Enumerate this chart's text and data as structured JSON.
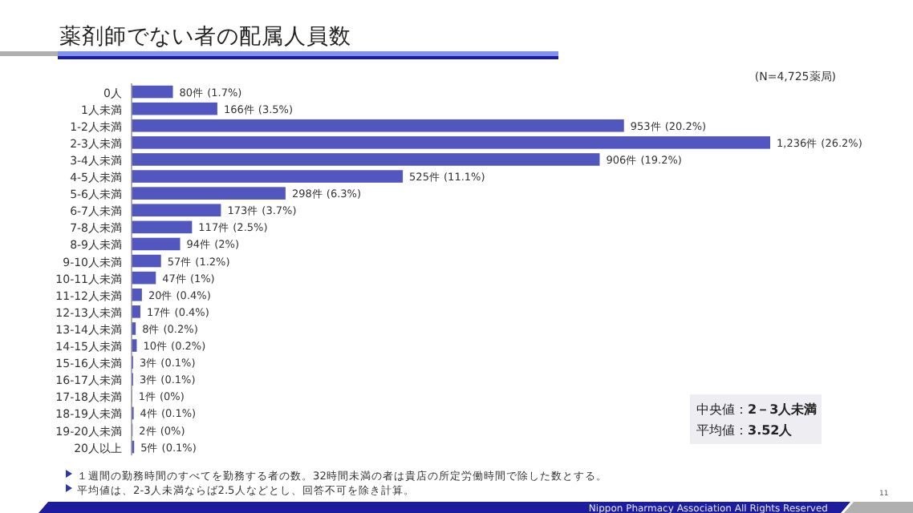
{
  "chart_data": {
    "type": "bar",
    "orientation": "horizontal",
    "title": "薬剤師でない者の配属人員数",
    "color": "#5257c0",
    "categories": [
      "0人",
      "1人未満",
      "1-2人未満",
      "2-3人未満",
      "3-4人未満",
      "4-5人未満",
      "5-6人未満",
      "6-7人未満",
      "7-8人未満",
      "8-9人未満",
      "9-10人未満",
      "10-11人未満",
      "11-12人未満",
      "12-13人未満",
      "13-14人未満",
      "14-15人未満",
      "15-16人未満",
      "16-17人未満",
      "17-18人未満",
      "18-19人未満",
      "19-20人未満",
      "20人以上"
    ],
    "values": [
      80,
      166,
      953,
      1236,
      906,
      525,
      298,
      173,
      117,
      94,
      57,
      47,
      20,
      17,
      8,
      10,
      3,
      3,
      1,
      4,
      2,
      5
    ],
    "value_labels": [
      "80件 (1.7%)",
      "166件 (3.5%)",
      "953件 (20.2%)",
      "1,236件 (26.2%)",
      "906件 (19.2%)",
      "525件 (11.1%)",
      "298件 (6.3%)",
      "173件 (3.7%)",
      "117件 (2.5%)",
      "94件 (2%)",
      "57件 (1.2%)",
      "47件 (1%)",
      "20件 (0.4%)",
      "17件 (0.4%)",
      "8件 (0.2%)",
      "10件 (0.2%)",
      "3件 (0.1%)",
      "3件 (0.1%)",
      "1件 (0%)",
      "4件 (0.1%)",
      "2件 (0%)",
      "5件 (0.1%)"
    ],
    "xlim": [
      0,
      1236
    ],
    "annotations": [
      "(N=4,725薬局)",
      "中央値：2－3人未満",
      "平均値：3.52人",
      "１週間の勤務時間のすべてを勤務する者の数。32時間未満の者は貴店の所定労働時間で除した数とする。",
      "平均値は、2-3人未満ならば2.5人などとし、回答不可を除き計算。",
      "Nippon Pharmacy Association All Rights Reserved",
      "11"
    ],
    "stacked": false
  }
}
